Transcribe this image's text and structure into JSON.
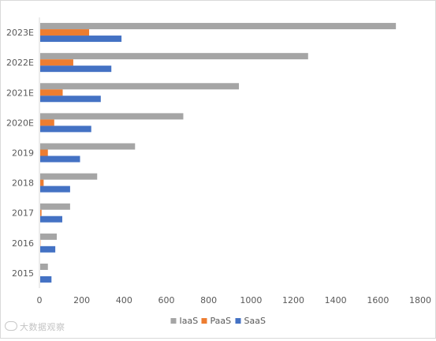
{
  "chart_data": {
    "type": "bar",
    "orientation": "horizontal",
    "categories": [
      "2015",
      "2016",
      "2017",
      "2018",
      "2019",
      "2020E",
      "2021E",
      "2022E",
      "2023E"
    ],
    "series": [
      {
        "name": "IaaS",
        "color": "#a5a5a5",
        "values": [
          40,
          82,
          145,
          273,
          452,
          680,
          943,
          1270,
          1685
        ]
      },
      {
        "name": "PaaS",
        "color": "#ed7d31",
        "values": [
          3,
          5,
          10,
          20,
          40,
          70,
          110,
          160,
          235
        ]
      },
      {
        "name": "SaaS",
        "color": "#4472c4",
        "values": [
          57,
          75,
          108,
          145,
          192,
          245,
          290,
          340,
          388
        ]
      }
    ],
    "xlim": [
      0,
      1800
    ],
    "xticks": [
      "0",
      "200",
      "400",
      "600",
      "800",
      "1000",
      "1200",
      "1400",
      "1600",
      "1800"
    ],
    "legend_position": "bottom-center",
    "grid": false,
    "title": "",
    "xlabel": "",
    "ylabel": ""
  },
  "watermark": {
    "text": "大数据观察"
  }
}
